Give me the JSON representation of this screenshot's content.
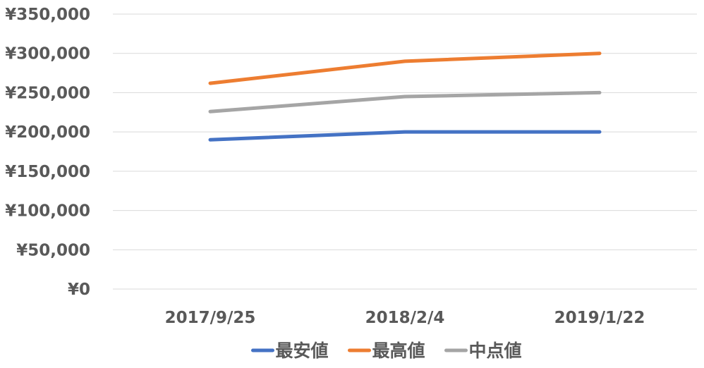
{
  "chart_data": {
    "type": "line",
    "title": "",
    "xlabel": "",
    "ylabel": "",
    "categories": [
      "2017/9/25",
      "2018/2/4",
      "2019/1/22"
    ],
    "ylim": [
      0,
      350000
    ],
    "y_ticks": [
      0,
      50000,
      100000,
      150000,
      200000,
      250000,
      300000,
      350000
    ],
    "y_tick_labels": [
      "¥0",
      "¥50,000",
      "¥100,000",
      "¥150,000",
      "¥200,000",
      "¥250,000",
      "¥300,000",
      "¥350,000"
    ],
    "grid": true,
    "legend_position": "bottom",
    "series": [
      {
        "name": "最安値",
        "color": "#4472c4",
        "values": [
          190000,
          200000,
          200000
        ]
      },
      {
        "name": "最高値",
        "color": "#ed7d31",
        "values": [
          262000,
          290000,
          300000
        ]
      },
      {
        "name": "中点値",
        "color": "#a5a5a5",
        "values": [
          226000,
          245000,
          250000
        ]
      }
    ]
  }
}
